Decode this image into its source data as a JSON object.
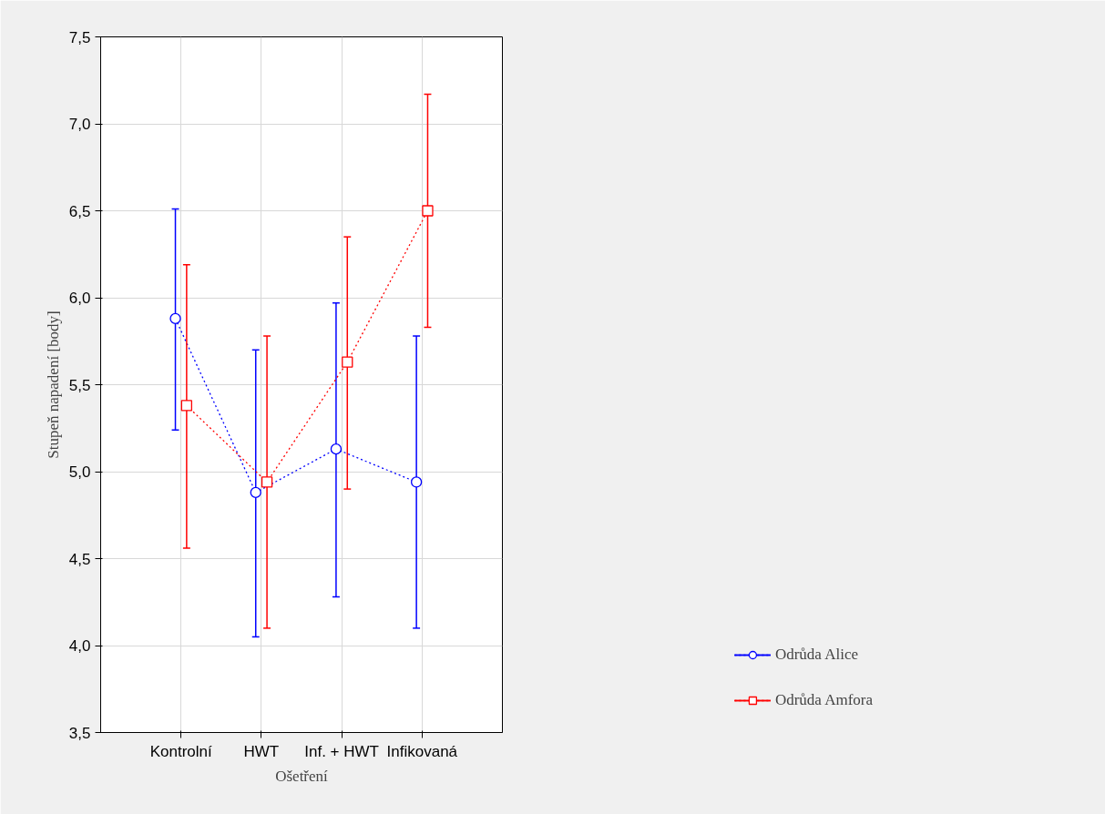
{
  "chart_data": {
    "type": "line",
    "xlabel": "Ošetření",
    "ylabel": "Stupeň napadení [body]",
    "categories": [
      "Kontrolní",
      "HWT",
      "Inf. + HWT",
      "Infikovaná"
    ],
    "series": [
      {
        "name": "Odrůda Alice",
        "color": "#0000ff",
        "marker": "circle",
        "values": [
          5.88,
          4.88,
          5.13,
          4.94
        ],
        "errors": [
          [
            5.24,
            6.51
          ],
          [
            4.05,
            5.7
          ],
          [
            4.28,
            5.97
          ],
          [
            4.1,
            5.78
          ]
        ]
      },
      {
        "name": "Odrůda Amfora",
        "color": "#ff0000",
        "marker": "square",
        "values": [
          5.38,
          4.94,
          5.63,
          6.5
        ],
        "errors": [
          [
            4.56,
            6.19
          ],
          [
            4.1,
            5.78
          ],
          [
            4.9,
            6.35
          ],
          [
            5.83,
            7.17
          ]
        ]
      }
    ],
    "ylim": [
      3.5,
      7.5
    ],
    "yticks": [
      {
        "value": 3.5,
        "label": "3,5"
      },
      {
        "value": 4.0,
        "label": "4,0"
      },
      {
        "value": 4.5,
        "label": "4,5"
      },
      {
        "value": 5.0,
        "label": "5,0"
      },
      {
        "value": 5.5,
        "label": "5,5"
      },
      {
        "value": 6.0,
        "label": "6,0"
      },
      {
        "value": 6.5,
        "label": "6,5"
      },
      {
        "value": 7.0,
        "label": "7,0"
      },
      {
        "value": 7.5,
        "label": "7,5"
      }
    ],
    "grid": true,
    "legend": "bottom right",
    "line_style": "dotted"
  }
}
